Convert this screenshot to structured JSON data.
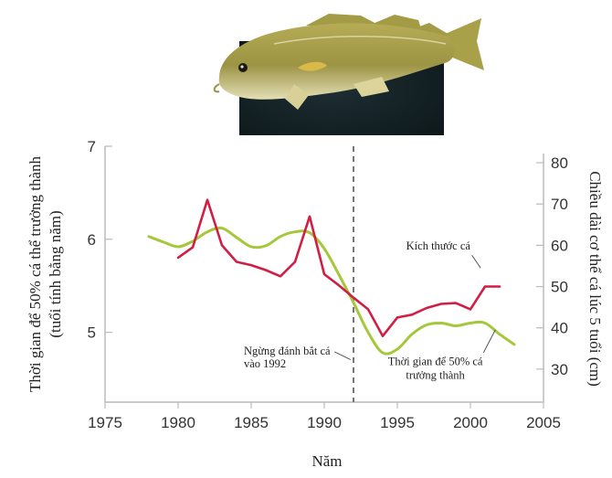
{
  "chart_data": {
    "type": "line",
    "xlabel": "Năm",
    "ylabel_left": "Thời gian để 50% cá thể trưởng thành",
    "ylabel_left_sub": "(tuổi tính bằng năm)",
    "ylabel_right": "Chiều dài cơ thể cá lúc 5 tuổi (cm)",
    "xlim": [
      1975,
      2005
    ],
    "ylim_left": [
      4.25,
      7
    ],
    "ylim_right": [
      22,
      84
    ],
    "x_ticks": [
      "1975",
      "1980",
      "1985",
      "1990",
      "1995",
      "2000",
      "2005"
    ],
    "y_left_ticks": [
      "7",
      "6",
      "5"
    ],
    "y_right_ticks": [
      "80",
      "70",
      "60",
      "50",
      "40",
      "30"
    ],
    "grid": false,
    "colors": {
      "maturity": "#a5c73a",
      "size": "#d01f44",
      "vline": "#555555",
      "axis": "#bbbbbb"
    },
    "series": [
      {
        "name": "Kích thước cá",
        "axis": "right",
        "x": [
          1980,
          1981,
          1982,
          1983,
          1984,
          1985,
          1986,
          1987,
          1988,
          1989,
          1990,
          1991,
          1992,
          1993,
          1994,
          1995,
          1996,
          1997,
          1998,
          1999,
          2000,
          2001,
          2002
        ],
        "values": [
          57,
          59.5,
          71,
          60,
          56,
          55.2,
          54,
          52.5,
          56,
          67,
          53,
          50.3,
          47.3,
          44.5,
          38,
          42.5,
          43.2,
          44.8,
          45.8,
          46,
          44.5,
          50,
          50
        ]
      },
      {
        "name": "Thời gian để 50% cá trưởng thành",
        "axis": "left",
        "x": [
          1978,
          1979,
          1980,
          1981,
          1982,
          1983,
          1984,
          1985,
          1986,
          1987,
          1988,
          1989,
          1990,
          1991,
          1992,
          1993,
          1994,
          1995,
          1996,
          1997,
          1998,
          1999,
          2000,
          2001,
          2002,
          2003
        ],
        "values": [
          6.03,
          5.97,
          5.92,
          5.98,
          6.08,
          6.12,
          6.02,
          5.92,
          5.93,
          6.03,
          6.08,
          6.07,
          5.9,
          5.62,
          5.32,
          5.0,
          4.78,
          4.82,
          4.98,
          5.08,
          5.1,
          5.07,
          5.1,
          5.1,
          4.98,
          4.87
        ]
      }
    ],
    "annotations": [
      {
        "lines": [
          "Kích thước cá"
        ],
        "x": 1997.8,
        "y_right": 59
      },
      {
        "lines": [
          "Ngừng đánh bắt cá",
          "vào 1992"
        ],
        "x": 1984.5,
        "y_right": 33.5
      },
      {
        "lines": [
          "Thời gian để 50% cá",
          "trưởng thành"
        ],
        "x": 1997.6,
        "y_right": 31
      }
    ],
    "reference_line": {
      "x": 1992,
      "style": "dashed"
    }
  },
  "image": {
    "subject": "cod-fish-photo"
  }
}
